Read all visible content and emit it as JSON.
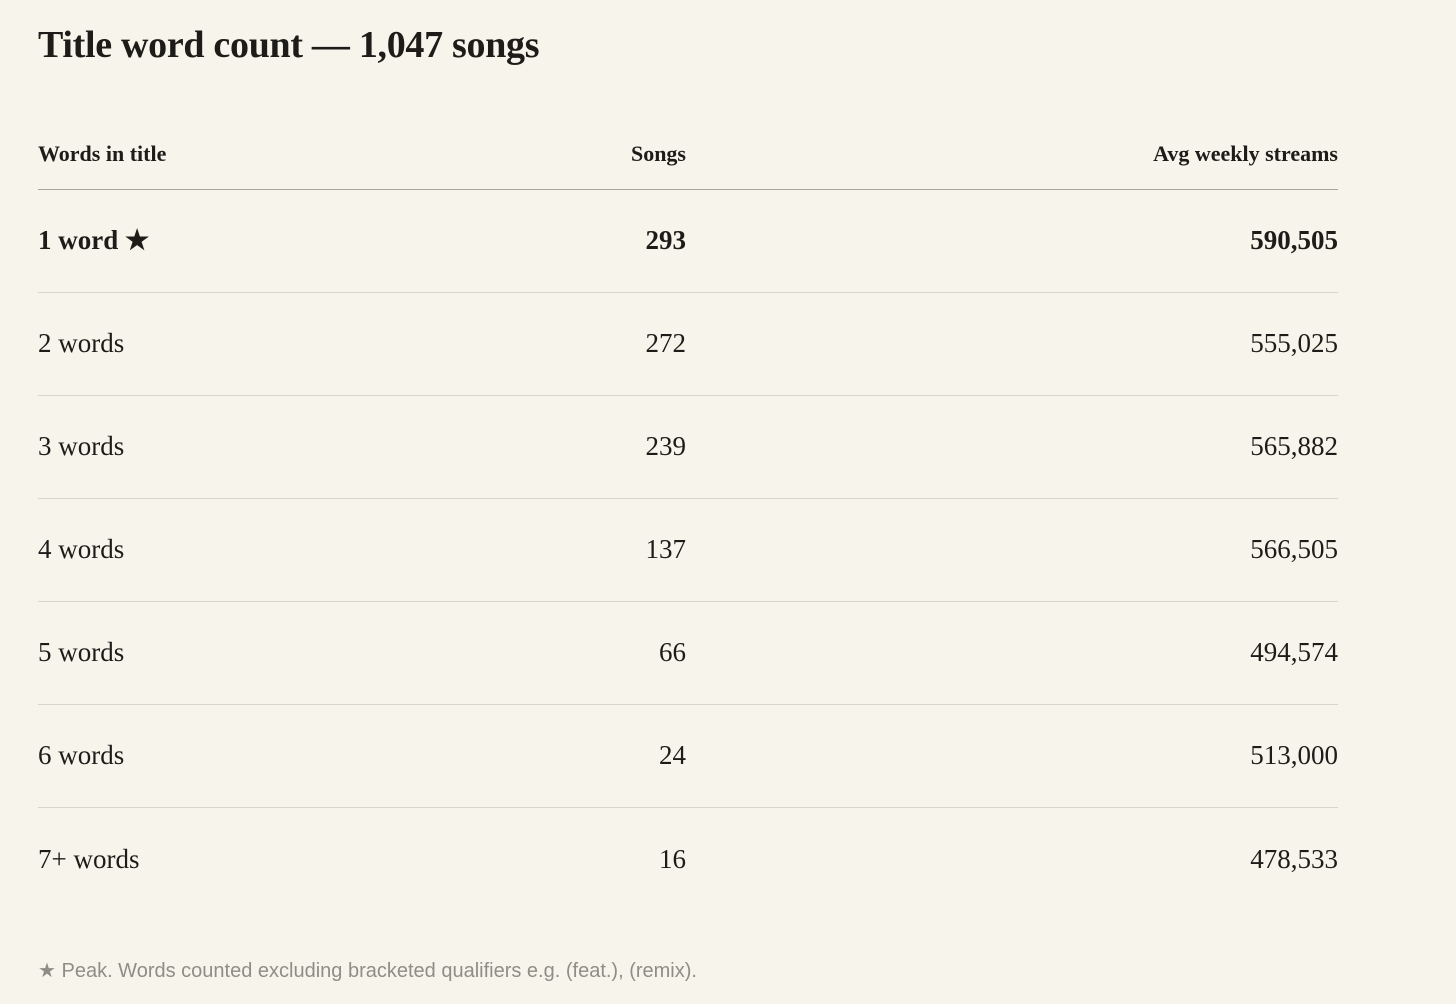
{
  "page": {
    "title": "Title word count — 1,047 songs"
  },
  "colors": {
    "background": "#f7f4ec",
    "text": "#1d1c18",
    "header_divider": "#a9a69d",
    "row_divider": "#d9d6cc",
    "muted": "#8f8d85"
  },
  "table": {
    "columns": [
      {
        "label": "Words in title",
        "align": "left"
      },
      {
        "label": "Songs",
        "align": "right"
      },
      {
        "label": "Avg weekly streams",
        "align": "right"
      }
    ],
    "rows": [
      {
        "words": "1 word ★",
        "songs": "293",
        "streams": "590,505",
        "peak": true
      },
      {
        "words": "2 words",
        "songs": "272",
        "streams": "555,025",
        "peak": false
      },
      {
        "words": "3 words",
        "songs": "239",
        "streams": "565,882",
        "peak": false
      },
      {
        "words": "4 words",
        "songs": "137",
        "streams": "566,505",
        "peak": false
      },
      {
        "words": "5 words",
        "songs": "66",
        "streams": "494,574",
        "peak": false
      },
      {
        "words": "6 words",
        "songs": "24",
        "streams": "513,000",
        "peak": false
      },
      {
        "words": "7+ words",
        "songs": "16",
        "streams": "478,533",
        "peak": false
      }
    ]
  },
  "footnote": {
    "text": "★ Peak. Words counted excluding bracketed qualifiers e.g. (feat.), (remix)."
  },
  "chart_data": {
    "type": "table",
    "title": "Title word count — 1,047 songs",
    "total_songs": 1047,
    "columns": [
      "Words in title",
      "Songs",
      "Avg weekly streams"
    ],
    "rows": [
      [
        "1 word ★",
        293,
        590505
      ],
      [
        "2 words",
        272,
        555025
      ],
      [
        "3 words",
        239,
        565882
      ],
      [
        "4 words",
        137,
        566505
      ],
      [
        "5 words",
        66,
        494574
      ],
      [
        "6 words",
        24,
        513000
      ],
      [
        "7+ words",
        16,
        478533
      ]
    ],
    "peak_row": "1 word",
    "footnote": "★ Peak. Words counted excluding bracketed qualifiers e.g. (feat.), (remix)."
  }
}
